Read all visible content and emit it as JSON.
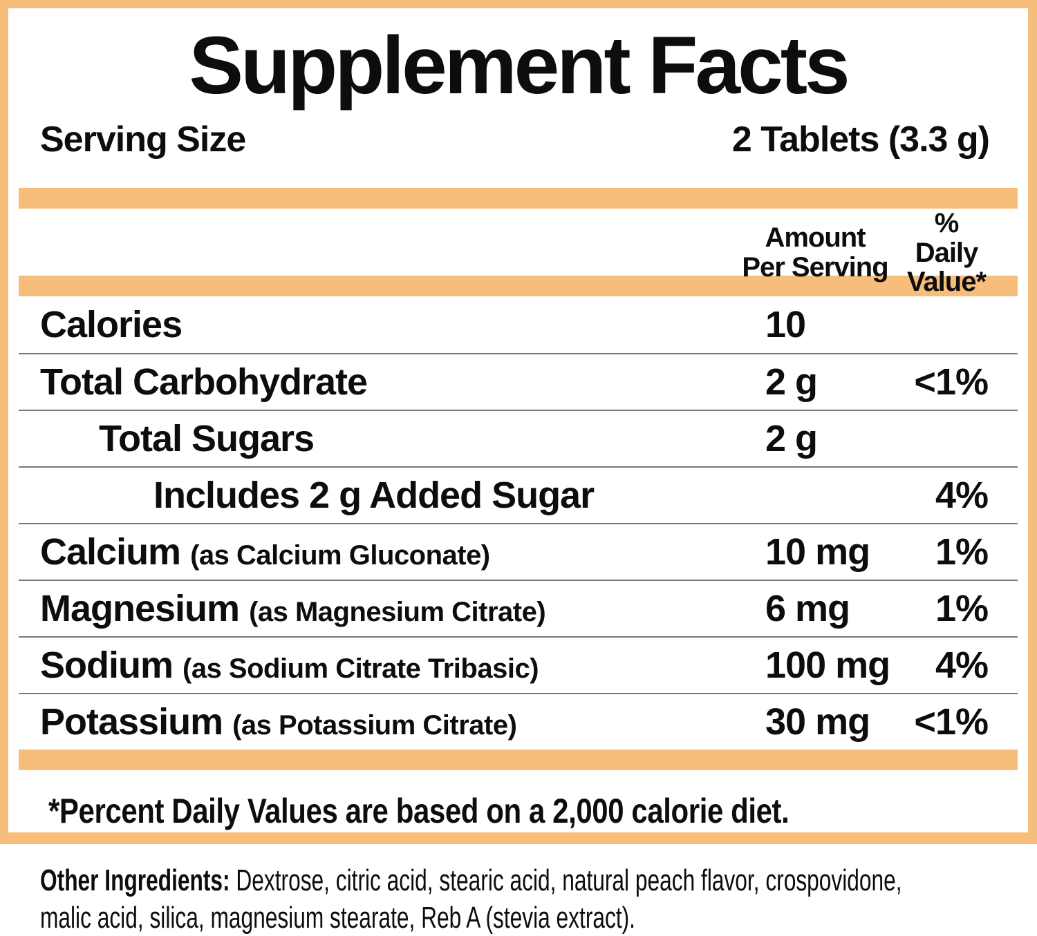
{
  "title": "Supplement Facts",
  "serving": {
    "label": "Serving Size",
    "value": "2 Tablets (3.3 g)"
  },
  "columns": {
    "amount_line1": "Amount",
    "amount_line2": "Per Serving",
    "dv_line1": "% Daily",
    "dv_line2": "Value*"
  },
  "table": {
    "rows": [
      {
        "label": "Calories",
        "note": "",
        "amount": "10",
        "dv": "",
        "indent": 0
      },
      {
        "label": "Total Carbohydrate",
        "note": "",
        "amount": "2 g",
        "dv": "<1%",
        "indent": 0
      },
      {
        "label": "Total Sugars",
        "note": "",
        "amount": "2 g",
        "dv": "",
        "indent": 1
      },
      {
        "label": "Includes 2 g Added Sugar",
        "note": "",
        "amount": "",
        "dv": "4%",
        "indent": 2
      },
      {
        "label": "Calcium",
        "note": "(as Calcium Gluconate)",
        "amount": "10 mg",
        "dv": "1%",
        "indent": 0
      },
      {
        "label": "Magnesium",
        "note": "(as Magnesium Citrate)",
        "amount": "6 mg",
        "dv": "1%",
        "indent": 0
      },
      {
        "label": "Sodium",
        "note": "(as Sodium Citrate Tribasic)",
        "amount": "100 mg",
        "dv": "4%",
        "indent": 0
      },
      {
        "label": "Potassium",
        "note": "(as Potassium Citrate)",
        "amount": "30 mg",
        "dv": "<1%",
        "indent": 0
      }
    ]
  },
  "footnote": "*Percent Daily Values are based on a 2,000 calorie diet.",
  "other_ingredients": {
    "label": "Other Ingredients:",
    "line1": "Dextrose, citric acid, stearic acid, natural peach flavor, crospovidone,",
    "line2": "malic acid, silica, magnesium stearate, Reb A (stevia extract)."
  },
  "colors": {
    "accent_orange": "#F7BE7B",
    "divider_gray": "#787878",
    "text_black": "#0d0d0d"
  }
}
